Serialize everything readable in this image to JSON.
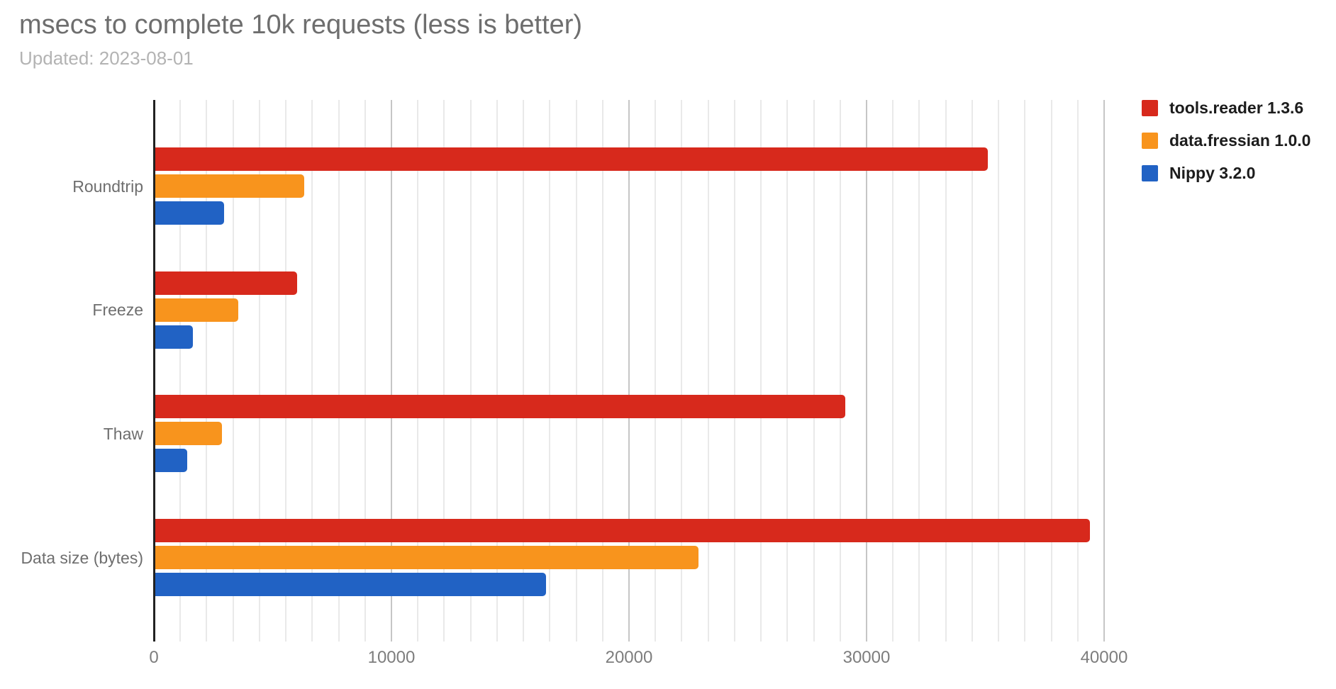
{
  "page": {
    "title": "msecs to complete 10k requests (less is better)",
    "subtitle": "Updated: 2023-08-01"
  },
  "chart_data": {
    "type": "bar",
    "orientation": "horizontal",
    "title": "msecs to complete 10k requests (less is better)",
    "subtitle": "Updated: 2023-08-01",
    "categories": [
      "Roundtrip",
      "Freeze",
      "Thaw",
      "Data size (bytes)"
    ],
    "series": [
      {
        "name": "tools.reader 1.3.6",
        "color": "#d7291c",
        "values": [
          35100,
          5990,
          29100,
          39400
        ]
      },
      {
        "name": "data.fressian 1.0.0",
        "color": "#f8941d",
        "values": [
          6280,
          3490,
          2820,
          22900
        ]
      },
      {
        "name": "Nippy 3.2.0",
        "color": "#2162c4",
        "values": [
          2890,
          1580,
          1340,
          16460
        ]
      }
    ],
    "xlim": [
      0,
      40240
    ],
    "x_ticks": [
      0,
      10000,
      20000,
      30000,
      40000
    ],
    "x_tick_labels": [
      "0",
      "10000",
      "20000",
      "30000",
      "40000"
    ],
    "major_tick_interval": 10000,
    "minor_gridlines_between_majors": 8,
    "legend_position": "right",
    "grid": "vertical-only",
    "colors": {
      "axis_line": "#212121",
      "major_gridline": "#c6c6c6",
      "minor_gridline": "#e9e9e9",
      "title_text": "#6e6e6e",
      "subtitle_text": "#b3b3b3",
      "tick_text": "#7d7d7d",
      "legend_text": "#1c1c1c"
    }
  }
}
